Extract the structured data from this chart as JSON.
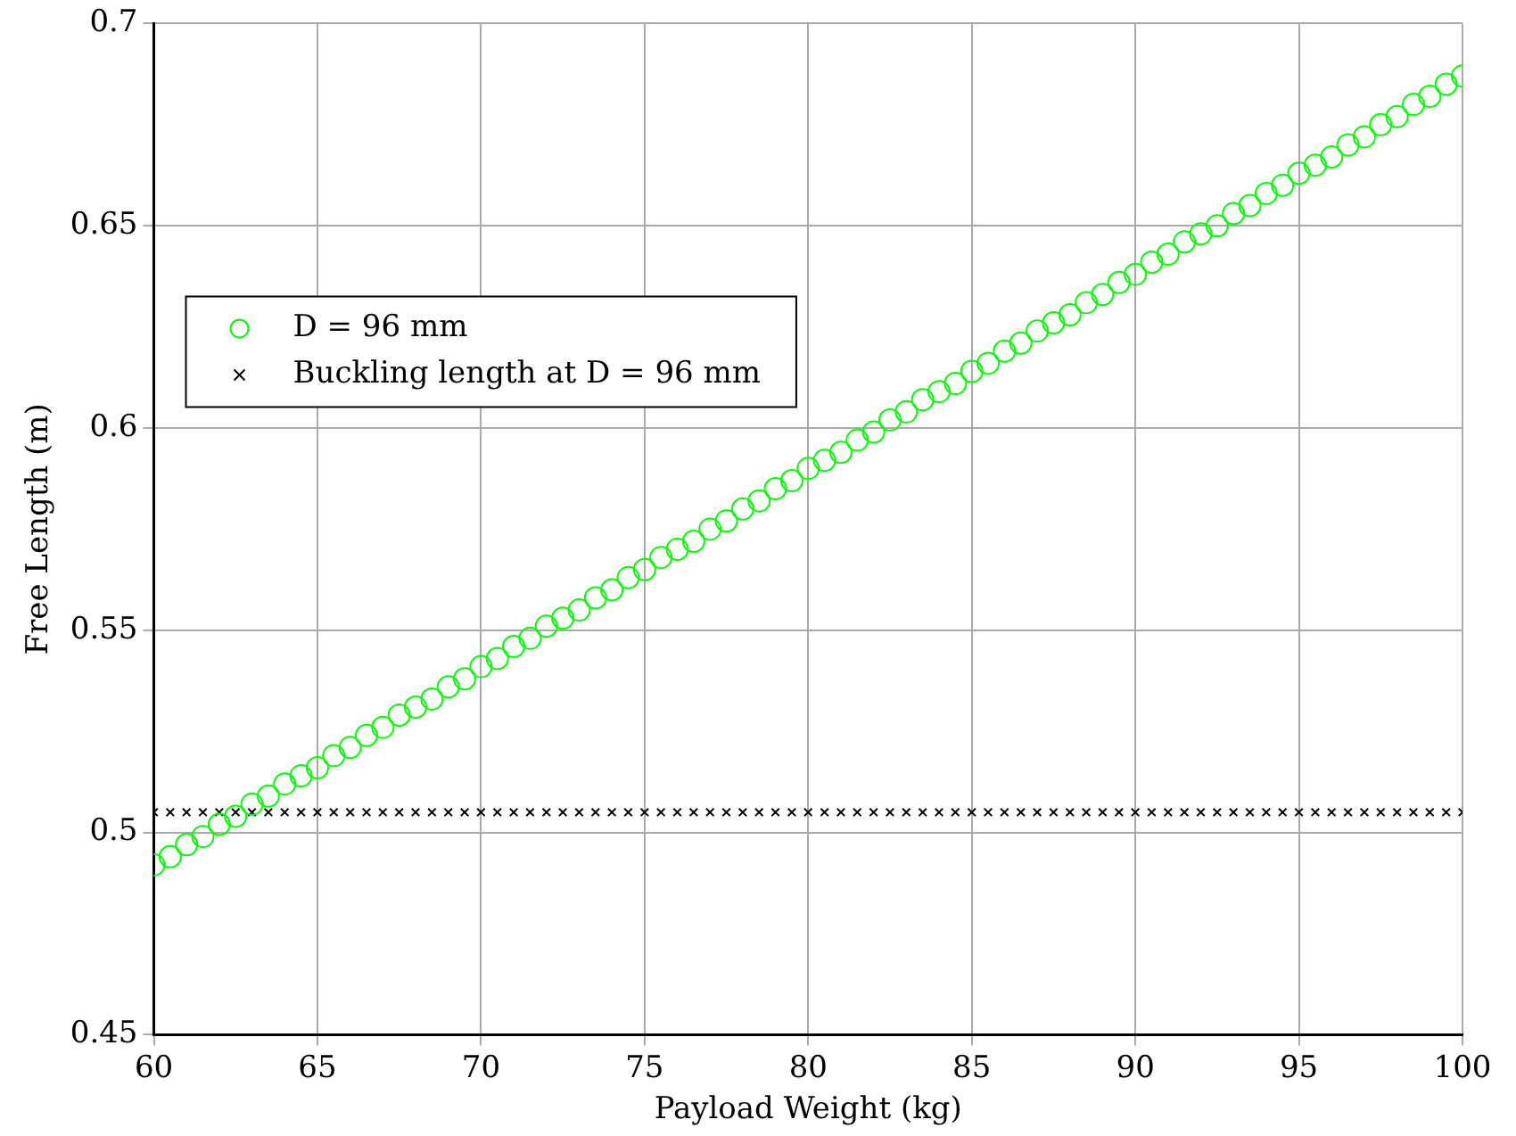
{
  "chart_data": {
    "type": "scatter",
    "xlabel": "Payload Weight (kg)",
    "ylabel": "Free Length (m)",
    "x": [
      60,
      60.5,
      61,
      61.5,
      62,
      62.5,
      63,
      63.5,
      64,
      64.5,
      65,
      65.5,
      66,
      66.5,
      67,
      67.5,
      68,
      68.5,
      69,
      69.5,
      70,
      70.5,
      71,
      71.5,
      72,
      72.5,
      73,
      73.5,
      74,
      74.5,
      75,
      75.5,
      76,
      76.5,
      77,
      77.5,
      78,
      78.5,
      79,
      79.5,
      80,
      80.5,
      81,
      81.5,
      82,
      82.5,
      83,
      83.5,
      84,
      84.5,
      85,
      85.5,
      86,
      86.5,
      87,
      87.5,
      88,
      88.5,
      89,
      89.5,
      90,
      90.5,
      91,
      91.5,
      92,
      92.5,
      93,
      93.5,
      94,
      94.5,
      95,
      95.5,
      96,
      96.5,
      97,
      97.5,
      98,
      98.5,
      99,
      99.5,
      100
    ],
    "series": [
      {
        "name": "D = 96 mm",
        "color": "#00ff00",
        "marker": "circle",
        "values": [
          0.492,
          0.494,
          0.497,
          0.499,
          0.502,
          0.504,
          0.507,
          0.509,
          0.512,
          0.514,
          0.516,
          0.519,
          0.521,
          0.524,
          0.526,
          0.529,
          0.531,
          0.533,
          0.536,
          0.538,
          0.541,
          0.543,
          0.546,
          0.548,
          0.551,
          0.553,
          0.555,
          0.558,
          0.56,
          0.563,
          0.565,
          0.568,
          0.57,
          0.572,
          0.575,
          0.577,
          0.58,
          0.582,
          0.585,
          0.587,
          0.59,
          0.592,
          0.594,
          0.597,
          0.599,
          0.602,
          0.604,
          0.607,
          0.609,
          0.611,
          0.614,
          0.616,
          0.619,
          0.621,
          0.624,
          0.626,
          0.628,
          0.631,
          0.633,
          0.636,
          0.638,
          0.641,
          0.643,
          0.646,
          0.648,
          0.65,
          0.653,
          0.655,
          0.658,
          0.66,
          0.663,
          0.665,
          0.667,
          0.67,
          0.672,
          0.675,
          0.677,
          0.68,
          0.682,
          0.685,
          0.687
        ]
      },
      {
        "name": "Buckling length at D = 96 mm",
        "color": "#000000",
        "marker": "cross",
        "values": [
          0.505,
          0.505,
          0.505,
          0.505,
          0.505,
          0.505,
          0.505,
          0.505,
          0.505,
          0.505,
          0.505,
          0.505,
          0.505,
          0.505,
          0.505,
          0.505,
          0.505,
          0.505,
          0.505,
          0.505,
          0.505,
          0.505,
          0.505,
          0.505,
          0.505,
          0.505,
          0.505,
          0.505,
          0.505,
          0.505,
          0.505,
          0.505,
          0.505,
          0.505,
          0.505,
          0.505,
          0.505,
          0.505,
          0.505,
          0.505,
          0.505,
          0.505,
          0.505,
          0.505,
          0.505,
          0.505,
          0.505,
          0.505,
          0.505,
          0.505,
          0.505,
          0.505,
          0.505,
          0.505,
          0.505,
          0.505,
          0.505,
          0.505,
          0.505,
          0.505,
          0.505,
          0.505,
          0.505,
          0.505,
          0.505,
          0.505,
          0.505,
          0.505,
          0.505,
          0.505,
          0.505,
          0.505,
          0.505,
          0.505,
          0.505,
          0.505,
          0.505,
          0.505,
          0.505,
          0.505,
          0.505
        ]
      }
    ],
    "xlim": [
      60,
      100
    ],
    "xticks": [
      60,
      65,
      70,
      75,
      80,
      85,
      90,
      95,
      100
    ],
    "ylim": [
      0.45,
      0.7
    ],
    "yticks": [
      0.45,
      0.5,
      0.55,
      0.6,
      0.65,
      0.7
    ],
    "grid": true,
    "legend": "top left"
  }
}
